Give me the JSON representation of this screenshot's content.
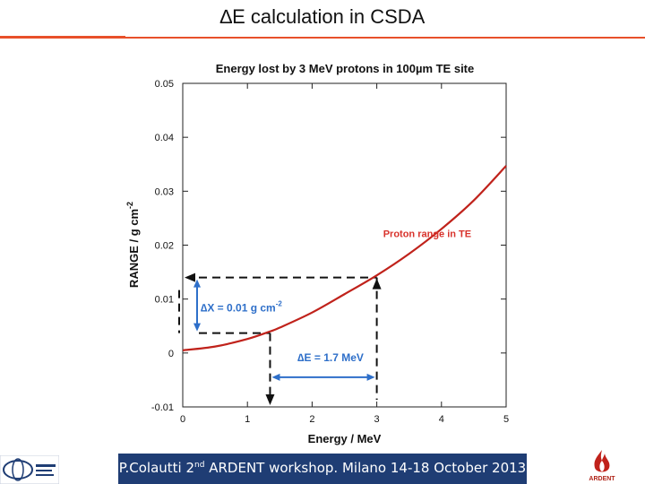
{
  "slide": {
    "title": "∆E calculation in CSDA",
    "footer": {
      "prefix": "P.Colautti 2",
      "sup": "nd",
      "suffix": " ARDENT workshop. Milano 14-18 October 2013"
    },
    "logo_right_text": "ARDENT",
    "accent_color": "#e8502a",
    "footer_color": "#1f3d74"
  },
  "chart_data": {
    "type": "line",
    "title": "Energy lost by 3 MeV protons in 100µm TE site",
    "xlabel": "Energy / MeV",
    "ylabel": "RANGE / g cm",
    "ylabel_sup": "-2",
    "xlim": [
      0,
      5
    ],
    "ylim": [
      -0.01,
      0.05
    ],
    "xticks": [
      "0",
      "1",
      "2",
      "3",
      "4",
      "5"
    ],
    "yticks": [
      "-0.01",
      "0",
      "0.01",
      "0.02",
      "0.03",
      "0.04",
      "0.05"
    ],
    "grid": false,
    "series": [
      {
        "name": "Proton range in TE",
        "color": "#c0221b",
        "x": [
          0,
          0.5,
          1.0,
          1.35,
          1.5,
          2.0,
          2.5,
          3.0,
          3.5,
          4.0,
          4.5,
          5.0
        ],
        "y": [
          0.0005,
          0.0012,
          0.0026,
          0.004,
          0.0047,
          0.0075,
          0.0109,
          0.0144,
          0.0184,
          0.023,
          0.0283,
          0.0347
        ]
      }
    ],
    "annotations": [
      {
        "text": "∆X = 0.01 g cm",
        "sup": "-2",
        "color": "#2e6fc9"
      },
      {
        "text": "∆E = 1.7 MeV",
        "color": "#2e6fc9"
      }
    ],
    "guides": {
      "e_low": 1.35,
      "e_high": 3.0,
      "r_low": 0.0037,
      "r_high": 0.014
    }
  }
}
